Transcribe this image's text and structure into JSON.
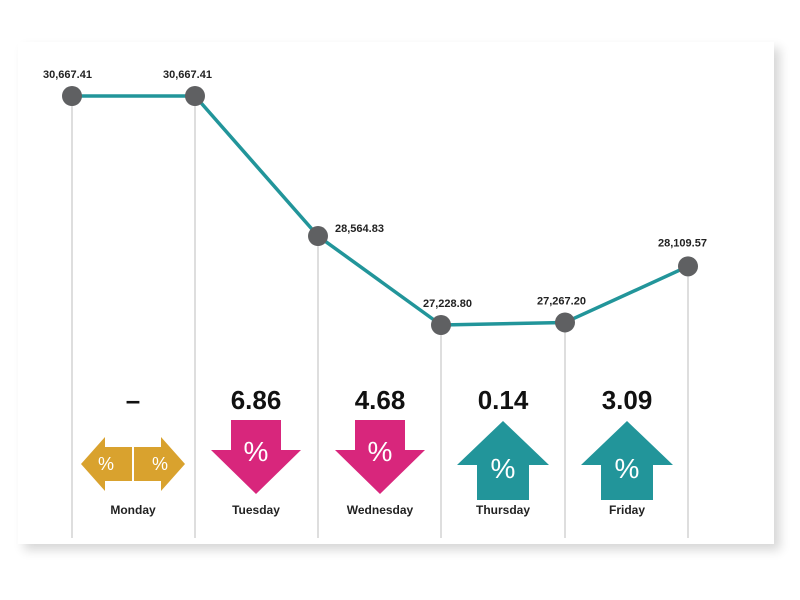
{
  "chart_data": {
    "type": "line",
    "categories": [
      "Monday",
      "Tuesday",
      "Wednesday",
      "Thursday",
      "Friday",
      ""
    ],
    "values": [
      30667.41,
      30667.41,
      28564.83,
      27228.8,
      27267.2,
      28109.57
    ],
    "value_labels": [
      "30,667.41",
      "30,667.41",
      "28,564.83",
      "27,228.80",
      "27,267.20",
      "28,109.57"
    ],
    "ylim": [
      26500,
      31200
    ],
    "grid": true,
    "title": "",
    "xlabel": "",
    "ylabel": "",
    "changes": [
      {
        "day": "Monday",
        "value": "–",
        "direction": "flat",
        "symbol": "%"
      },
      {
        "day": "Tuesday",
        "value": "6.86",
        "direction": "down",
        "symbol": "%"
      },
      {
        "day": "Wednesday",
        "value": "4.68",
        "direction": "down",
        "symbol": "%"
      },
      {
        "day": "Thursday",
        "value": "0.14",
        "direction": "up",
        "symbol": "%"
      },
      {
        "day": "Friday",
        "value": "3.09",
        "direction": "up",
        "symbol": "%"
      }
    ]
  },
  "colors": {
    "line": "#22959a",
    "marker": "#5f6062",
    "gridline": "#bdbdbd",
    "flat": "#d9a22e",
    "down": "#d8267c",
    "up": "#22959a"
  }
}
